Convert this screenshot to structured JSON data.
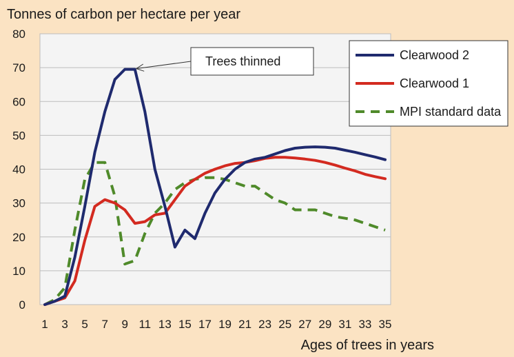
{
  "chart_data": {
    "type": "line",
    "title": "",
    "ylabel": "Tonnes of carbon per hectare per year",
    "xlabel": "Ages of trees in years",
    "xlim": [
      1,
      35
    ],
    "ylim": [
      0,
      80
    ],
    "x_ticks": [
      1,
      3,
      5,
      7,
      9,
      11,
      13,
      15,
      17,
      19,
      21,
      23,
      25,
      27,
      29,
      31,
      33,
      35
    ],
    "y_ticks": [
      0,
      10,
      20,
      30,
      40,
      50,
      60,
      70,
      80
    ],
    "grid": "horizontal",
    "legend_position": "top-right",
    "series": [
      {
        "name": "Clearwood 2",
        "color": "#1f2a6e",
        "style": "solid",
        "x": [
          1,
          2,
          3,
          4,
          5,
          6,
          7,
          8,
          9,
          10,
          11,
          12,
          13,
          14,
          15,
          16,
          17,
          18,
          19,
          20,
          21,
          22,
          23,
          24,
          25,
          26,
          27,
          28,
          29,
          30,
          31,
          32,
          33,
          34,
          35
        ],
        "y": [
          0,
          1,
          2.5,
          14,
          29,
          45,
          57,
          66.5,
          69.5,
          69.5,
          57,
          40,
          29,
          17,
          22,
          19.5,
          27,
          33,
          37,
          40,
          42,
          43,
          43.5,
          44.5,
          45.5,
          46.2,
          46.5,
          46.6,
          46.5,
          46.2,
          45.6,
          45,
          44.3,
          43.6,
          42.8
        ]
      },
      {
        "name": "Clearwood 1",
        "color": "#d32a20",
        "style": "solid",
        "x": [
          1,
          2,
          3,
          4,
          5,
          6,
          7,
          8,
          9,
          10,
          11,
          12,
          13,
          14,
          15,
          16,
          17,
          18,
          19,
          20,
          21,
          22,
          23,
          24,
          25,
          26,
          27,
          28,
          29,
          30,
          31,
          32,
          33,
          34,
          35
        ],
        "y": [
          0,
          1,
          2,
          7,
          19,
          29,
          31,
          30,
          28,
          24,
          24.5,
          26.5,
          27,
          31,
          35,
          37,
          38.8,
          40,
          41,
          41.7,
          42,
          42.5,
          43.2,
          43.5,
          43.5,
          43.3,
          43,
          42.6,
          42,
          41.2,
          40.3,
          39.5,
          38.5,
          37.8,
          37.2
        ]
      },
      {
        "name": "MPI standard data",
        "color": "#4f8a2a",
        "style": "dashed",
        "x": [
          1,
          2,
          3,
          4,
          5,
          6,
          7,
          8,
          9,
          10,
          11,
          12,
          13,
          14,
          15,
          16,
          17,
          18,
          19,
          20,
          21,
          22,
          23,
          24,
          25,
          26,
          27,
          28,
          29,
          30,
          31,
          32,
          33,
          34,
          35
        ],
        "y": [
          0,
          1.5,
          5,
          22,
          37,
          42,
          42,
          32,
          12,
          13,
          21,
          27,
          30,
          34,
          36,
          37,
          37.5,
          37.5,
          37,
          36,
          35,
          35,
          33,
          31,
          30,
          28,
          28,
          28,
          27,
          26,
          25.5,
          25,
          24,
          23,
          22
        ]
      }
    ],
    "annotations": [
      {
        "text": "Trees thinned",
        "target": {
          "x": 10,
          "y": 69.5
        }
      }
    ]
  }
}
